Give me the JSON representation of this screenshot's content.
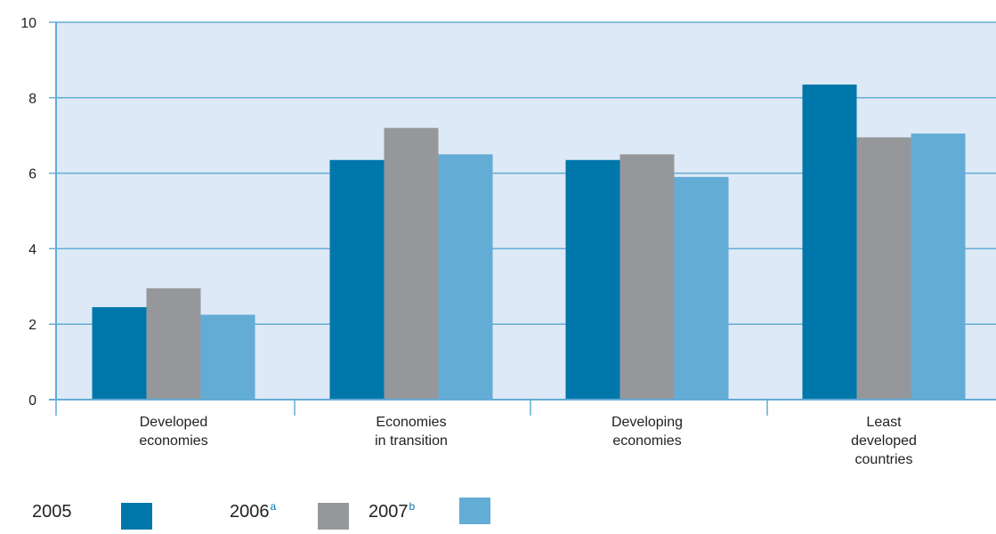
{
  "chart_data": {
    "type": "bar",
    "categories": [
      [
        "Developed",
        "economies"
      ],
      [
        "Economies",
        "in transition"
      ],
      [
        "Developing",
        "economies"
      ],
      [
        "Least",
        "developed",
        "countries"
      ]
    ],
    "series": [
      {
        "name": "2005",
        "note": "",
        "color": "#0077aa",
        "values": [
          2.45,
          6.35,
          6.35,
          8.35
        ]
      },
      {
        "name": "2006",
        "note": "a",
        "color": "#96979b",
        "values": [
          2.95,
          7.2,
          6.5,
          6.95
        ]
      },
      {
        "name": "2007",
        "note": "b",
        "color": "#63acd6",
        "values": [
          2.25,
          6.5,
          5.9,
          7.05
        ]
      }
    ],
    "yticks": [
      "0",
      "2",
      "4",
      "6",
      "8",
      "10"
    ],
    "ylim": [
      0,
      10
    ],
    "grid": true,
    "plot_background": "#dde9f6",
    "grid_color": "#63acd6",
    "legend_placement": "bottom-left",
    "title": "",
    "xlabel": "",
    "ylabel": ""
  }
}
